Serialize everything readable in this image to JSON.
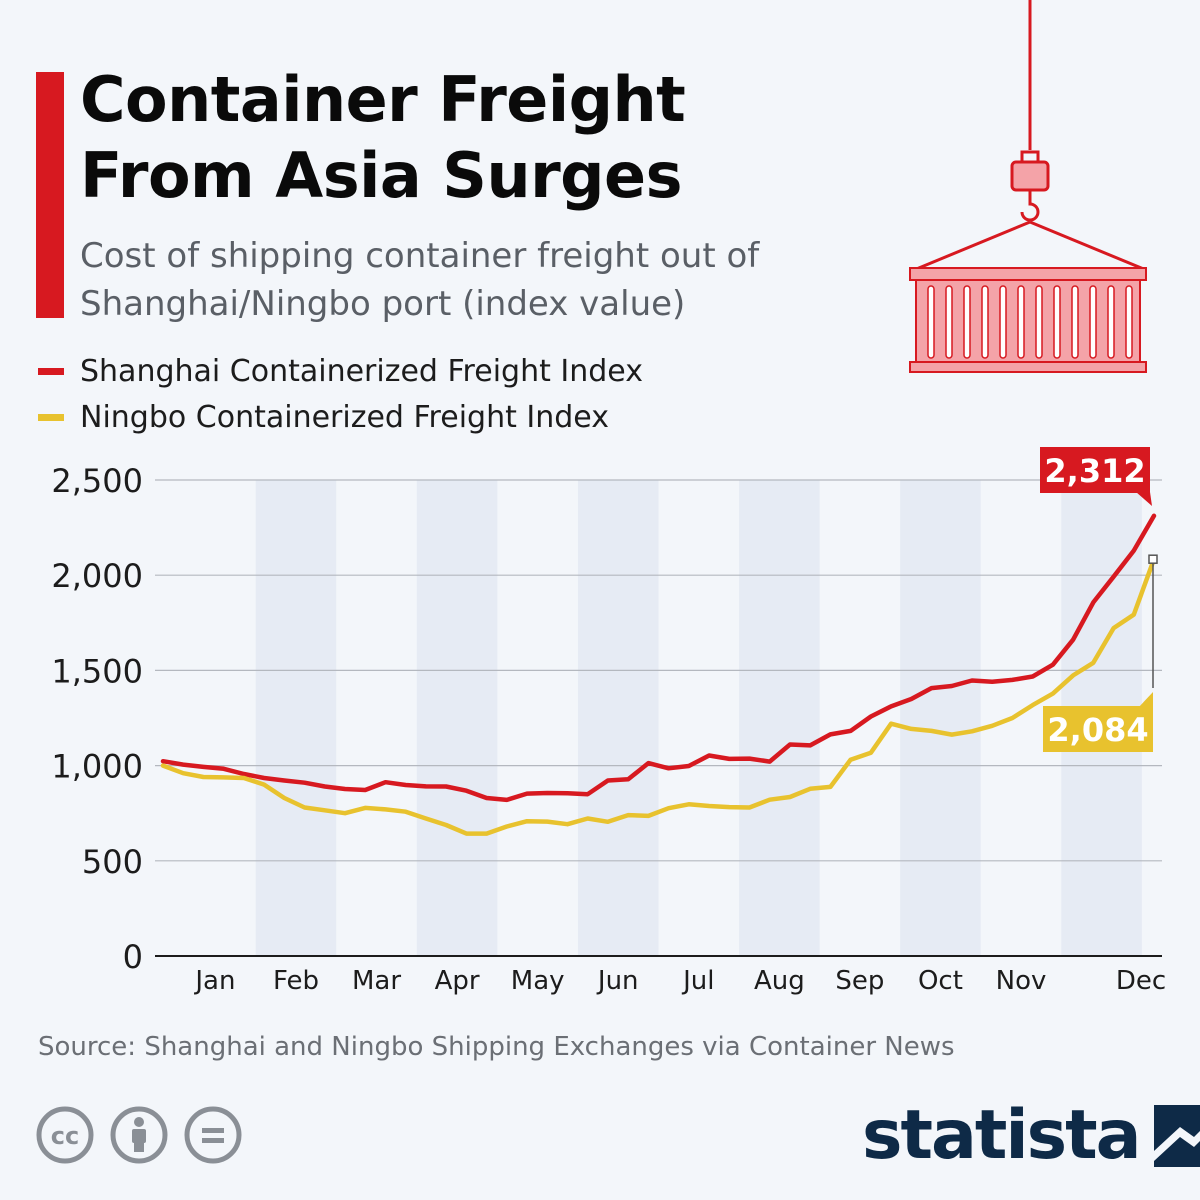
{
  "title": "Container Freight From Asia Surges",
  "subtitle": "Cost of shipping container freight out of Shanghai/Ningbo port (index value)",
  "legend": [
    {
      "label": "Shanghai Containerized Freight Index",
      "color": "#d71920"
    },
    {
      "label": "Ningbo Containerized Freight Index",
      "color": "#e8c22e"
    }
  ],
  "source": "Source: Shanghai and Ningbo Shipping Exchanges via Container News",
  "brand": "statista",
  "colors": {
    "accent": "#d71920",
    "shanghai": "#d71920",
    "ningbo": "#e8c22e",
    "band": "#e6ebf4",
    "brand": "#0e2a47"
  },
  "icons": [
    "creative-commons-icon",
    "attribution-icon",
    "no-derivatives-icon",
    "statista-logo-icon",
    "container-crane-icon"
  ],
  "chart_data": {
    "type": "line",
    "title": "",
    "xlabel": "",
    "ylabel": "",
    "ylim": [
      0,
      2500
    ],
    "yticks": [
      "0",
      "500",
      "1,000",
      "1,500",
      "2,000",
      "2,500"
    ],
    "ytick_values": [
      0,
      500,
      1000,
      1500,
      2000,
      2500
    ],
    "months": [
      "Jan",
      "Feb",
      "Mar",
      "Apr",
      "May",
      "Jun",
      "Jul",
      "Aug",
      "Sep",
      "Oct",
      "Nov",
      "Dec"
    ],
    "grid": true,
    "shaded_months": [
      "Feb",
      "Apr",
      "Jun",
      "Aug",
      "Oct",
      "Dec"
    ],
    "series": [
      {
        "name": "Shanghai Containerized Freight Index",
        "color": "#d71920",
        "end_label": "2,312",
        "values": [
          1023,
          1005,
          993,
          983,
          956,
          935,
          922,
          910,
          890,
          877,
          872,
          913,
          898,
          891,
          890,
          868,
          830,
          820,
          853,
          856,
          855,
          850,
          922,
          928,
          1013,
          986,
          998,
          1053,
          1035,
          1037,
          1021,
          1111,
          1106,
          1164,
          1182,
          1258,
          1311,
          1350,
          1407,
          1418,
          1447,
          1440,
          1450,
          1468,
          1530,
          1661,
          1857,
          1992,
          2129,
          2312
        ]
      },
      {
        "name": "Ningbo Containerized Freight Index",
        "color": "#e8c22e",
        "end_label": "2,084",
        "values": [
          1000,
          960,
          940,
          938,
          935,
          900,
          830,
          780,
          765,
          750,
          778,
          770,
          758,
          722,
          688,
          643,
          643,
          680,
          708,
          706,
          692,
          722,
          705,
          740,
          736,
          776,
          797,
          788,
          782,
          780,
          821,
          835,
          878,
          888,
          1031,
          1068,
          1220,
          1193,
          1182,
          1163,
          1180,
          1209,
          1250,
          1318,
          1378,
          1474,
          1540,
          1722,
          1793,
          2084
        ]
      }
    ]
  }
}
